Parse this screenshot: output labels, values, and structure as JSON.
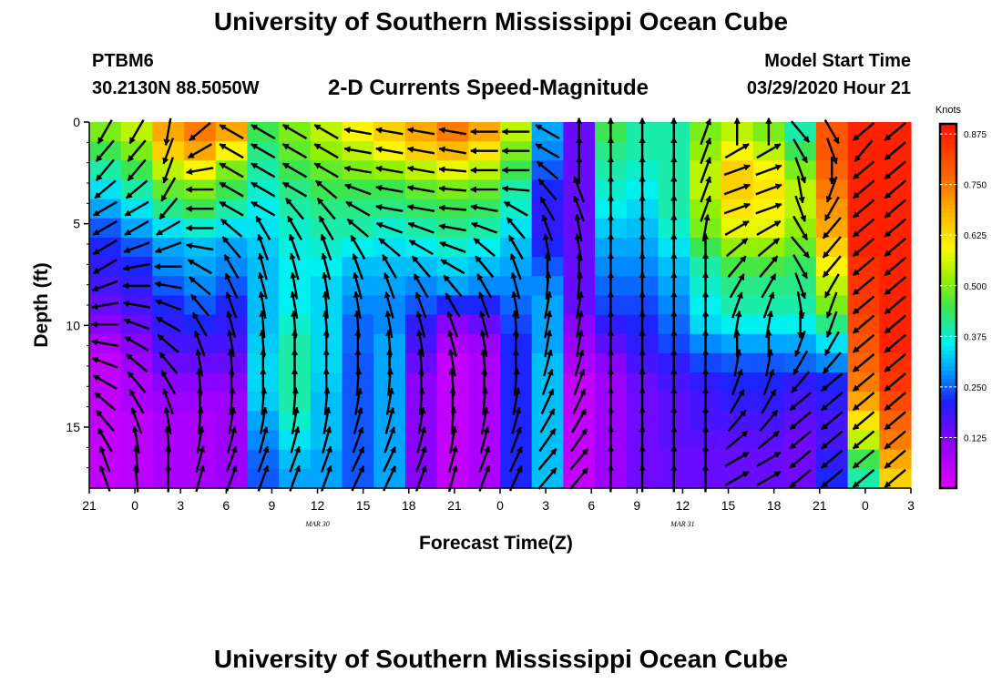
{
  "header": {
    "title": "University of Southern Mississippi Ocean Cube",
    "station": "PTBM6",
    "coords": "30.2130N 88.5050W",
    "subtitle": "2-D Currents Speed-Magnitude",
    "model_start_label": "Model Start Time",
    "model_start_value": "03/29/2020 Hour 21"
  },
  "footer": {
    "title": "University of Southern Mississippi Ocean Cube"
  },
  "chart_data": {
    "type": "heatmap",
    "title": "2-D Currents Speed-Magnitude",
    "xlabel": "Forecast Time(Z)",
    "ylabel": "Depth (ft)",
    "x_ticks": [
      "21",
      "0",
      "3",
      "6",
      "9",
      "12",
      "15",
      "18",
      "21",
      "0",
      "3",
      "6",
      "9",
      "12",
      "15",
      "18",
      "21",
      "0",
      "3"
    ],
    "date_labels": [
      {
        "text": "MAR 30",
        "tick_index": 5
      },
      {
        "text": "MAR 31",
        "tick_index": 13
      }
    ],
    "y_ticks": [
      0,
      5,
      10,
      15
    ],
    "ylim": [
      0,
      18
    ],
    "y_inverted": true,
    "colorbar": {
      "unit": "Knots",
      "ticks": [
        "0.875",
        "0.750",
        "0.625",
        "0.500",
        "0.375",
        "0.250",
        "0.125"
      ],
      "range": [
        0,
        0.9
      ]
    },
    "speed_grid_note": "rows = depth 0..18 ft, cols = forecast hours 21Z Mar 29 .. 03Z Apr 1 (every 2 h); knots",
    "speed_grid": [
      [
        0.5,
        0.55,
        0.7,
        0.75,
        0.7,
        0.45,
        0.5,
        0.55,
        0.6,
        0.65,
        0.7,
        0.75,
        0.7,
        0.55,
        0.3,
        0.15,
        0.45,
        0.4,
        0.4,
        0.5,
        0.55,
        0.5,
        0.4,
        0.8,
        0.88,
        0.88
      ],
      [
        0.45,
        0.5,
        0.65,
        0.7,
        0.6,
        0.42,
        0.48,
        0.52,
        0.55,
        0.6,
        0.65,
        0.68,
        0.62,
        0.5,
        0.28,
        0.15,
        0.42,
        0.4,
        0.4,
        0.52,
        0.6,
        0.55,
        0.45,
        0.8,
        0.88,
        0.88
      ],
      [
        0.4,
        0.45,
        0.55,
        0.6,
        0.5,
        0.4,
        0.45,
        0.48,
        0.5,
        0.52,
        0.55,
        0.58,
        0.55,
        0.45,
        0.25,
        0.15,
        0.4,
        0.38,
        0.4,
        0.55,
        0.65,
        0.6,
        0.5,
        0.78,
        0.88,
        0.88
      ],
      [
        0.35,
        0.4,
        0.48,
        0.5,
        0.45,
        0.38,
        0.42,
        0.45,
        0.45,
        0.45,
        0.48,
        0.5,
        0.48,
        0.4,
        0.22,
        0.15,
        0.38,
        0.36,
        0.4,
        0.55,
        0.65,
        0.62,
        0.55,
        0.75,
        0.88,
        0.88
      ],
      [
        0.3,
        0.35,
        0.42,
        0.45,
        0.4,
        0.36,
        0.4,
        0.42,
        0.42,
        0.42,
        0.44,
        0.45,
        0.44,
        0.38,
        0.2,
        0.15,
        0.36,
        0.34,
        0.4,
        0.52,
        0.62,
        0.6,
        0.55,
        0.72,
        0.88,
        0.88
      ],
      [
        0.25,
        0.3,
        0.35,
        0.38,
        0.35,
        0.35,
        0.38,
        0.4,
        0.4,
        0.38,
        0.4,
        0.42,
        0.4,
        0.35,
        0.2,
        0.15,
        0.33,
        0.32,
        0.38,
        0.5,
        0.58,
        0.58,
        0.52,
        0.7,
        0.88,
        0.88
      ],
      [
        0.22,
        0.25,
        0.3,
        0.32,
        0.3,
        0.33,
        0.37,
        0.38,
        0.36,
        0.35,
        0.36,
        0.38,
        0.36,
        0.32,
        0.22,
        0.15,
        0.3,
        0.3,
        0.35,
        0.45,
        0.52,
        0.52,
        0.48,
        0.65,
        0.88,
        0.88
      ],
      [
        0.2,
        0.22,
        0.28,
        0.3,
        0.28,
        0.32,
        0.36,
        0.36,
        0.32,
        0.32,
        0.32,
        0.34,
        0.32,
        0.3,
        0.25,
        0.15,
        0.28,
        0.28,
        0.32,
        0.4,
        0.46,
        0.46,
        0.44,
        0.6,
        0.86,
        0.88
      ],
      [
        0.18,
        0.2,
        0.25,
        0.28,
        0.25,
        0.32,
        0.36,
        0.34,
        0.3,
        0.3,
        0.28,
        0.3,
        0.28,
        0.28,
        0.28,
        0.15,
        0.26,
        0.26,
        0.3,
        0.38,
        0.42,
        0.42,
        0.42,
        0.55,
        0.85,
        0.88
      ],
      [
        0.15,
        0.18,
        0.22,
        0.25,
        0.22,
        0.32,
        0.36,
        0.34,
        0.28,
        0.28,
        0.25,
        0.22,
        0.22,
        0.26,
        0.3,
        0.15,
        0.24,
        0.24,
        0.28,
        0.36,
        0.4,
        0.4,
        0.4,
        0.5,
        0.84,
        0.88
      ],
      [
        0.12,
        0.15,
        0.2,
        0.22,
        0.2,
        0.32,
        0.38,
        0.34,
        0.26,
        0.28,
        0.2,
        0.12,
        0.15,
        0.24,
        0.3,
        0.12,
        0.2,
        0.22,
        0.26,
        0.34,
        0.36,
        0.36,
        0.36,
        0.42,
        0.82,
        0.88
      ],
      [
        0.08,
        0.12,
        0.18,
        0.18,
        0.18,
        0.33,
        0.4,
        0.34,
        0.26,
        0.3,
        0.18,
        0.08,
        0.1,
        0.22,
        0.3,
        0.1,
        0.16,
        0.2,
        0.24,
        0.28,
        0.3,
        0.3,
        0.3,
        0.35,
        0.8,
        0.88
      ],
      [
        0.05,
        0.1,
        0.15,
        0.15,
        0.15,
        0.34,
        0.4,
        0.34,
        0.25,
        0.3,
        0.15,
        0.05,
        0.08,
        0.22,
        0.32,
        0.08,
        0.12,
        0.18,
        0.2,
        0.24,
        0.25,
        0.25,
        0.26,
        0.28,
        0.78,
        0.86
      ],
      [
        0.05,
        0.08,
        0.12,
        0.12,
        0.12,
        0.34,
        0.4,
        0.33,
        0.25,
        0.3,
        0.12,
        0.05,
        0.08,
        0.22,
        0.32,
        0.05,
        0.1,
        0.15,
        0.18,
        0.2,
        0.22,
        0.22,
        0.2,
        0.22,
        0.75,
        0.85
      ],
      [
        0.05,
        0.08,
        0.1,
        0.1,
        0.1,
        0.33,
        0.4,
        0.32,
        0.25,
        0.3,
        0.12,
        0.05,
        0.08,
        0.22,
        0.32,
        0.05,
        0.1,
        0.14,
        0.16,
        0.18,
        0.2,
        0.2,
        0.18,
        0.2,
        0.7,
        0.82
      ],
      [
        0.05,
        0.06,
        0.08,
        0.08,
        0.1,
        0.3,
        0.38,
        0.32,
        0.25,
        0.3,
        0.12,
        0.05,
        0.08,
        0.22,
        0.32,
        0.05,
        0.1,
        0.14,
        0.16,
        0.18,
        0.18,
        0.18,
        0.16,
        0.18,
        0.62,
        0.78
      ],
      [
        0.05,
        0.06,
        0.08,
        0.08,
        0.1,
        0.28,
        0.35,
        0.32,
        0.25,
        0.3,
        0.12,
        0.05,
        0.08,
        0.22,
        0.32,
        0.05,
        0.1,
        0.14,
        0.16,
        0.16,
        0.16,
        0.16,
        0.14,
        0.18,
        0.55,
        0.75
      ],
      [
        0.05,
        0.06,
        0.08,
        0.08,
        0.1,
        0.26,
        0.32,
        0.3,
        0.25,
        0.3,
        0.12,
        0.05,
        0.08,
        0.22,
        0.32,
        0.05,
        0.1,
        0.14,
        0.15,
        0.15,
        0.15,
        0.15,
        0.14,
        0.2,
        0.45,
        0.7
      ],
      [
        0.05,
        0.06,
        0.08,
        0.08,
        0.1,
        0.25,
        0.3,
        0.3,
        0.25,
        0.3,
        0.12,
        0.05,
        0.08,
        0.22,
        0.32,
        0.05,
        0.1,
        0.14,
        0.15,
        0.15,
        0.15,
        0.15,
        0.14,
        0.22,
        0.4,
        0.65
      ]
    ],
    "vector_directions_note": "current direction per cell in degrees (0 = up/north, 90 = right/east)",
    "vector_dir_grid": [
      [
        210,
        210,
        190,
        230,
        300,
        300,
        300,
        300,
        280,
        280,
        280,
        280,
        270,
        270,
        300,
        0,
        0,
        0,
        0,
        20,
        0,
        0,
        140,
        150,
        230,
        230
      ],
      [
        220,
        220,
        200,
        240,
        300,
        300,
        300,
        300,
        280,
        280,
        280,
        280,
        270,
        270,
        300,
        0,
        0,
        0,
        0,
        20,
        60,
        60,
        150,
        160,
        220,
        230
      ],
      [
        220,
        220,
        200,
        260,
        300,
        300,
        300,
        300,
        280,
        280,
        280,
        275,
        270,
        270,
        310,
        0,
        0,
        0,
        0,
        20,
        70,
        70,
        160,
        180,
        230,
        230
      ],
      [
        230,
        230,
        210,
        270,
        300,
        300,
        300,
        310,
        290,
        280,
        280,
        275,
        270,
        275,
        320,
        340,
        0,
        0,
        0,
        20,
        70,
        70,
        170,
        200,
        230,
        230
      ],
      [
        240,
        240,
        220,
        270,
        300,
        300,
        320,
        320,
        300,
        280,
        280,
        275,
        280,
        300,
        330,
        340,
        0,
        0,
        0,
        20,
        70,
        70,
        160,
        210,
        230,
        230
      ],
      [
        240,
        240,
        240,
        270,
        310,
        330,
        330,
        330,
        310,
        290,
        290,
        280,
        290,
        320,
        340,
        350,
        0,
        0,
        0,
        10,
        60,
        60,
        150,
        220,
        230,
        230
      ],
      [
        240,
        250,
        250,
        280,
        320,
        340,
        340,
        340,
        330,
        310,
        300,
        290,
        310,
        330,
        350,
        350,
        0,
        0,
        0,
        0,
        50,
        50,
        140,
        220,
        230,
        230
      ],
      [
        240,
        260,
        270,
        300,
        330,
        345,
        345,
        345,
        340,
        330,
        320,
        300,
        320,
        340,
        0,
        0,
        0,
        0,
        0,
        0,
        40,
        40,
        150,
        220,
        230,
        230
      ],
      [
        250,
        270,
        280,
        310,
        335,
        345,
        350,
        350,
        345,
        340,
        330,
        320,
        330,
        345,
        5,
        5,
        0,
        0,
        0,
        0,
        30,
        30,
        160,
        210,
        230,
        230
      ],
      [
        260,
        280,
        290,
        320,
        340,
        350,
        350,
        355,
        350,
        345,
        340,
        330,
        340,
        350,
        10,
        10,
        0,
        0,
        0,
        0,
        20,
        20,
        170,
        200,
        230,
        230
      ],
      [
        270,
        290,
        300,
        330,
        345,
        355,
        355,
        355,
        355,
        350,
        345,
        340,
        345,
        355,
        10,
        10,
        0,
        0,
        0,
        0,
        10,
        10,
        180,
        200,
        230,
        230
      ],
      [
        280,
        300,
        310,
        340,
        350,
        355,
        0,
        0,
        0,
        355,
        350,
        345,
        350,
        0,
        10,
        10,
        0,
        0,
        0,
        0,
        0,
        0,
        200,
        210,
        230,
        230
      ],
      [
        290,
        310,
        320,
        350,
        355,
        0,
        0,
        0,
        0,
        0,
        355,
        350,
        355,
        0,
        15,
        15,
        0,
        0,
        0,
        0,
        10,
        10,
        210,
        220,
        230,
        230
      ],
      [
        300,
        320,
        330,
        355,
        0,
        0,
        0,
        0,
        5,
        5,
        0,
        355,
        0,
        5,
        20,
        20,
        0,
        0,
        0,
        0,
        20,
        20,
        220,
        230,
        230,
        230
      ],
      [
        310,
        330,
        340,
        0,
        5,
        5,
        5,
        5,
        10,
        10,
        5,
        0,
        5,
        10,
        25,
        25,
        0,
        0,
        0,
        0,
        30,
        30,
        230,
        230,
        230,
        230
      ],
      [
        320,
        340,
        350,
        5,
        10,
        10,
        10,
        10,
        15,
        15,
        10,
        5,
        10,
        15,
        30,
        30,
        0,
        0,
        0,
        0,
        40,
        40,
        230,
        230,
        230,
        230
      ],
      [
        330,
        350,
        355,
        10,
        15,
        15,
        15,
        15,
        20,
        20,
        15,
        10,
        15,
        20,
        35,
        35,
        0,
        0,
        0,
        0,
        50,
        50,
        230,
        230,
        230,
        230
      ],
      [
        340,
        355,
        0,
        15,
        20,
        20,
        20,
        20,
        25,
        25,
        20,
        15,
        20,
        25,
        40,
        40,
        0,
        0,
        0,
        0,
        60,
        60,
        230,
        230,
        230,
        230
      ],
      [
        340,
        355,
        0,
        15,
        20,
        20,
        20,
        20,
        25,
        25,
        20,
        15,
        20,
        25,
        40,
        40,
        0,
        0,
        0,
        0,
        60,
        60,
        230,
        230,
        230,
        230
      ]
    ]
  }
}
